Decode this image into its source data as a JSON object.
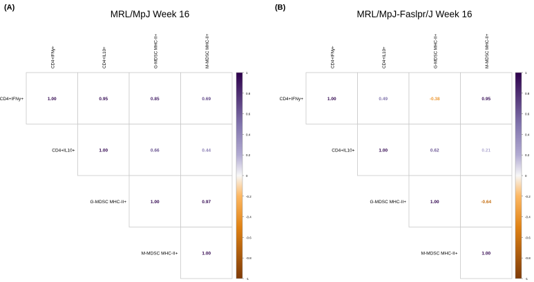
{
  "chart_data": [
    {
      "type": "heatmap",
      "panel_label": "(A)",
      "title": "MRL/MpJ Week 16",
      "variables": [
        "CD4+IFNy+",
        "CD4+IL10+",
        "G-MDSC MHC-II+",
        "M-MDSC MHC-II+"
      ],
      "matrix": [
        [
          1.0,
          0.95,
          0.85,
          0.69
        ],
        [
          null,
          1.0,
          0.66,
          0.44
        ],
        [
          null,
          null,
          1.0,
          0.97
        ],
        [
          null,
          null,
          null,
          1.0
        ]
      ],
      "color_scale": {
        "min": -1,
        "max": 1,
        "ticks": [
          1,
          0.8,
          0.6,
          0.4,
          0.2,
          0,
          -0.2,
          -0.4,
          -0.6,
          -0.8,
          -1
        ]
      },
      "triangle": "upper"
    },
    {
      "type": "heatmap",
      "panel_label": "(B)",
      "title": "MRL/MpJ-Faslpr/J Week 16",
      "variables": [
        "CD4+IFNy+",
        "CD4+IL10+",
        "G-MDSC MHC-II+",
        "M-MDSC MHC-II+"
      ],
      "matrix": [
        [
          1.0,
          0.49,
          -0.38,
          0.95
        ],
        [
          null,
          1.0,
          0.62,
          0.21
        ],
        [
          null,
          null,
          1.0,
          -0.64
        ],
        [
          null,
          null,
          null,
          1.0
        ]
      ],
      "color_scale": {
        "min": -1,
        "max": 1,
        "ticks": [
          1,
          0.8,
          0.6,
          0.4,
          0.2,
          0,
          -0.2,
          -0.4,
          -0.6,
          -0.8,
          -1
        ]
      },
      "triangle": "upper"
    }
  ],
  "colors": {
    "positive_end": "#2d004b",
    "positive_mid": "#b2abd2",
    "neutral": "#f7f7f7",
    "negative_mid": "#fdb863",
    "negative_end": "#7f3b08",
    "grid_line": "#c8c8c8"
  }
}
